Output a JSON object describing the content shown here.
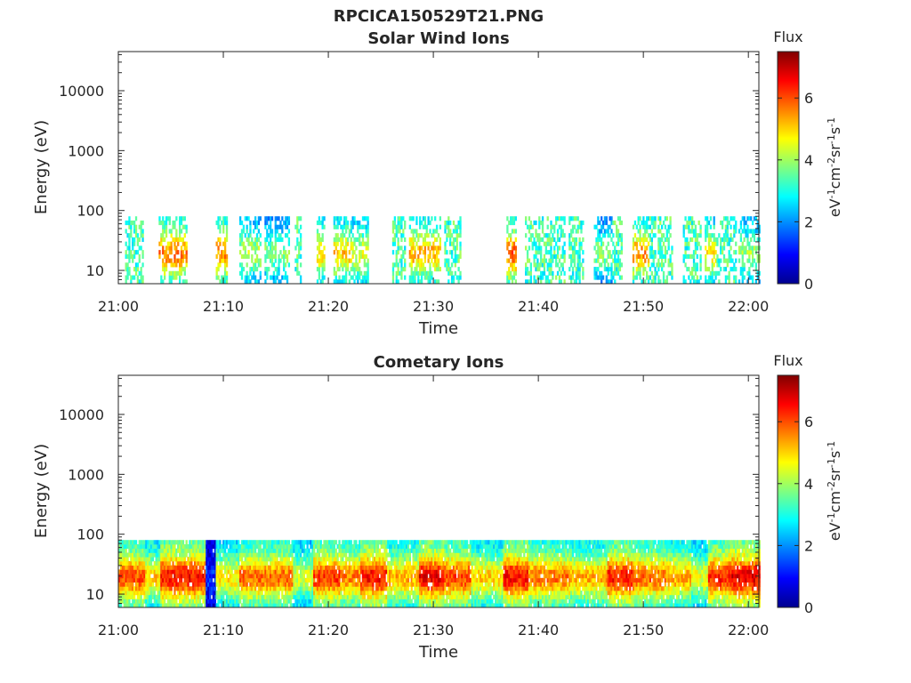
{
  "figure": {
    "title": "RPCICA150529T21.PNG"
  },
  "chart_data": [
    {
      "type": "heatmap",
      "title": "Solar Wind Ions",
      "xlabel": "Time",
      "ylabel": "Energy (eV)",
      "x_ticks": [
        "21:00",
        "21:10",
        "21:20",
        "21:30",
        "21:40",
        "21:50",
        "22:00"
      ],
      "x_range_minutes": [
        0,
        61
      ],
      "y_scale": "log",
      "y_ticks": [
        10,
        100,
        1000,
        10000
      ],
      "y_tick_labels": [
        "10",
        "100",
        "1000",
        "10000"
      ],
      "ylim": [
        6,
        45000
      ],
      "colorbar": {
        "title": "Flux",
        "label": "eV-1cm-2sr-1s-1",
        "ticks": [
          "0",
          "2",
          "4",
          "6"
        ],
        "range": [
          0,
          7.5
        ],
        "colormap": "jet"
      },
      "energy_max": 80,
      "activity": [
        [
          0.5,
          1.5,
          3.0
        ],
        [
          1.4,
          2.4,
          3.2
        ],
        [
          3.8,
          6.5,
          5.4
        ],
        [
          9.2,
          10.4,
          5.3
        ],
        [
          11.4,
          13.5,
          4.0
        ],
        [
          13.8,
          16.2,
          3.6
        ],
        [
          16.8,
          17.4,
          3.2
        ],
        [
          18.8,
          19.6,
          4.6
        ],
        [
          20.4,
          22.0,
          4.8
        ],
        [
          22.0,
          23.8,
          4.3
        ],
        [
          26.0,
          27.3,
          3.5
        ],
        [
          27.6,
          30.6,
          5.0
        ],
        [
          30.9,
          32.6,
          3.5
        ],
        [
          36.8,
          37.9,
          5.6
        ],
        [
          38.6,
          42.4,
          3.0
        ],
        [
          42.8,
          44.2,
          3.2
        ],
        [
          45.2,
          46.9,
          3.6
        ],
        [
          47.0,
          47.9,
          3.3
        ],
        [
          48.8,
          50.4,
          5.2
        ],
        [
          50.5,
          52.7,
          3.3
        ],
        [
          53.6,
          55.4,
          3.1
        ],
        [
          55.8,
          56.9,
          4.6
        ],
        [
          56.9,
          58.8,
          3.4
        ],
        [
          59.0,
          61.0,
          3.8
        ]
      ]
    },
    {
      "type": "heatmap",
      "title": "Cometary Ions",
      "xlabel": "Time",
      "ylabel": "Energy (eV)",
      "x_ticks": [
        "21:00",
        "21:10",
        "21:20",
        "21:30",
        "21:40",
        "21:50",
        "22:00"
      ],
      "x_range_minutes": [
        0,
        61
      ],
      "y_scale": "log",
      "y_ticks": [
        10,
        100,
        1000,
        10000
      ],
      "y_tick_labels": [
        "10",
        "100",
        "1000",
        "10000"
      ],
      "ylim": [
        6,
        45000
      ],
      "colorbar": {
        "title": "Flux",
        "label": "eV-1cm-2sr-1s-1",
        "ticks": [
          "0",
          "2",
          "4",
          "6"
        ],
        "range": [
          0,
          7.5
        ],
        "colormap": "jet"
      },
      "energy_max": 80,
      "activity": [
        [
          0.0,
          2.5,
          5.7
        ],
        [
          2.5,
          4.0,
          4.8
        ],
        [
          4.0,
          8.2,
          6.2
        ],
        [
          8.2,
          9.2,
          1.2
        ],
        [
          9.2,
          11.5,
          4.6
        ],
        [
          11.5,
          16.5,
          5.5
        ],
        [
          16.5,
          18.5,
          4.2
        ],
        [
          18.5,
          21.0,
          5.9
        ],
        [
          21.0,
          23.0,
          5.4
        ],
        [
          23.0,
          25.5,
          6.2
        ],
        [
          25.5,
          28.5,
          5.0
        ],
        [
          28.5,
          31.0,
          6.3
        ],
        [
          31.0,
          33.5,
          5.8
        ],
        [
          33.5,
          36.5,
          4.8
        ],
        [
          36.5,
          39.0,
          6.2
        ],
        [
          39.0,
          43.0,
          5.4
        ],
        [
          43.0,
          46.5,
          5.0
        ],
        [
          46.5,
          49.0,
          6.1
        ],
        [
          49.0,
          52.0,
          5.5
        ],
        [
          52.0,
          54.5,
          5.1
        ],
        [
          54.5,
          56.0,
          4.3
        ],
        [
          56.0,
          58.0,
          6.0
        ],
        [
          58.0,
          61.0,
          6.4
        ]
      ]
    }
  ]
}
